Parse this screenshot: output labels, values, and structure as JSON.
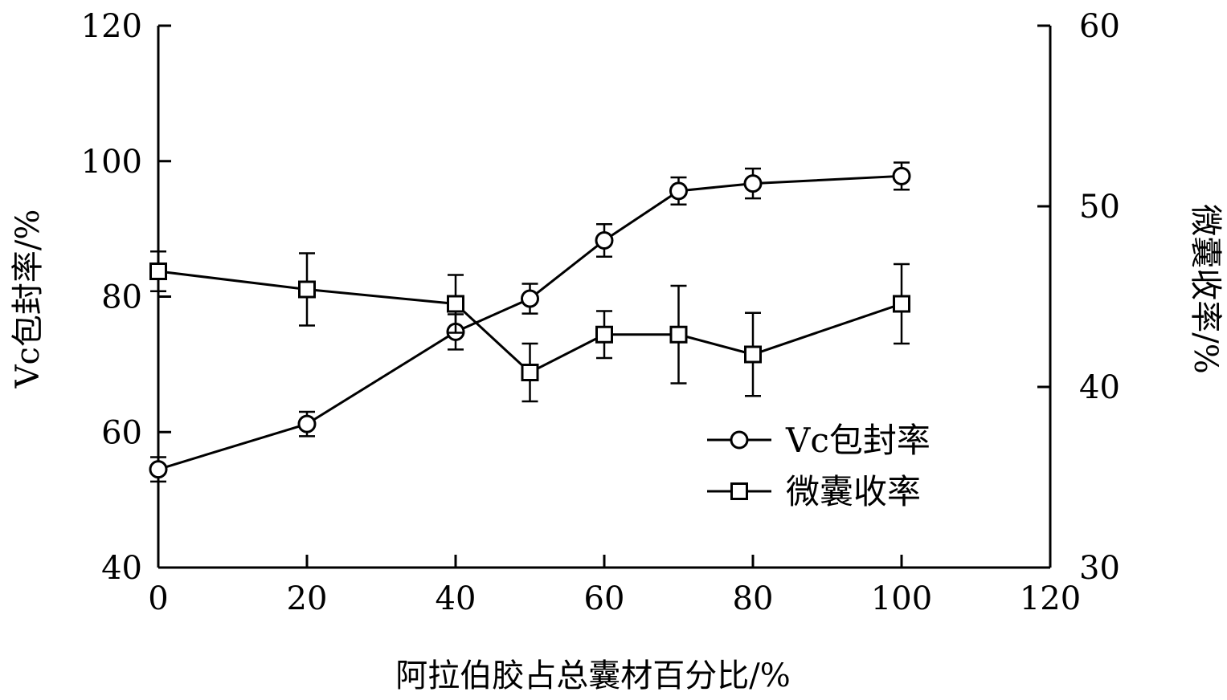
{
  "chart_data": {
    "type": "line",
    "xlabel": "阿拉伯胶占总囊材百分比/%",
    "ylabel_left": "Vc包封率/%",
    "ylabel_right": "微囊收率/%",
    "xlim": [
      0,
      120
    ],
    "ylim_left": [
      40,
      120
    ],
    "ylim_right": [
      30,
      60
    ],
    "x_ticks": [
      0,
      20,
      40,
      60,
      80,
      100,
      120
    ],
    "y_left_ticks": [
      40,
      60,
      80,
      100,
      120
    ],
    "y_right_ticks": [
      30,
      40,
      50,
      60
    ],
    "grid": false,
    "legend_position": "lower-right",
    "series": [
      {
        "name": "Vc包封率",
        "axis": "left",
        "marker": "circle",
        "x": [
          0,
          20,
          40,
          50,
          60,
          70,
          80,
          100
        ],
        "y": [
          54.5,
          61.2,
          74.8,
          79.7,
          88.3,
          95.6,
          96.7,
          97.8
        ],
        "err": [
          1.8,
          1.8,
          2.6,
          2.2,
          2.4,
          2.0,
          2.2,
          2.0
        ]
      },
      {
        "name": "微囊收率",
        "axis": "right",
        "marker": "square",
        "x": [
          0,
          20,
          40,
          50,
          60,
          70,
          80,
          100
        ],
        "y": [
          46.4,
          45.4,
          44.6,
          40.8,
          42.9,
          42.9,
          41.8,
          44.6
        ],
        "err": [
          1.1,
          2.0,
          1.6,
          1.6,
          1.3,
          2.7,
          2.3,
          2.2
        ]
      }
    ]
  }
}
